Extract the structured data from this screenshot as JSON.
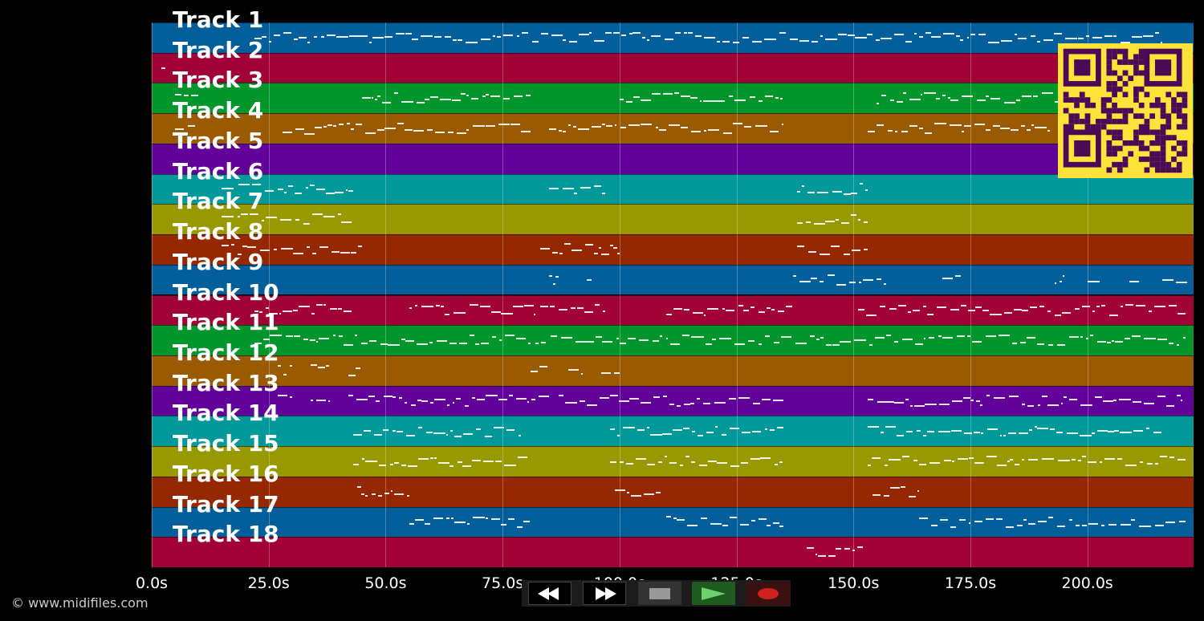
{
  "tracks": [
    {
      "label": "Track 1",
      "color": "#005f9a"
    },
    {
      "label": "Track 2",
      "color": "#a00035"
    },
    {
      "label": "Track 3",
      "color": "#00962c"
    },
    {
      "label": "Track 4",
      "color": "#9a5a00"
    },
    {
      "label": "Track 5",
      "color": "#62009a"
    },
    {
      "label": "Track 6",
      "color": "#009898"
    },
    {
      "label": "Track 7",
      "color": "#989800"
    },
    {
      "label": "Track 8",
      "color": "#962800"
    },
    {
      "label": "Track 9",
      "color": "#005f9a"
    },
    {
      "label": "Track 10",
      "color": "#a00035"
    },
    {
      "label": "Track 11",
      "color": "#00962c"
    },
    {
      "label": "Track 12",
      "color": "#9a5a00"
    },
    {
      "label": "Track 13",
      "color": "#62009a"
    },
    {
      "label": "Track 14",
      "color": "#009898"
    },
    {
      "label": "Track 15",
      "color": "#989800"
    },
    {
      "label": "Track 16",
      "color": "#962800"
    },
    {
      "label": "Track 17",
      "color": "#005f9a"
    },
    {
      "label": "Track 18",
      "color": "#a00035"
    }
  ],
  "timeline": {
    "ticks": [
      "0.0s",
      "25.0s",
      "50.0s",
      "75.0s",
      "100.0s",
      "125.0s",
      "150.0s",
      "175.0s",
      "200.0s"
    ],
    "tick_seconds": [
      0,
      25,
      50,
      75,
      100,
      125,
      150,
      175,
      200
    ],
    "max_seconds": 222.7
  },
  "note_segments": [
    {
      "track": 0,
      "spans": [
        [
          22,
          216
        ]
      ]
    },
    {
      "track": 1,
      "spans": [
        [
          2,
          3
        ]
      ]
    },
    {
      "track": 2,
      "spans": [
        [
          5,
          10
        ],
        [
          45,
          81
        ],
        [
          100,
          135
        ],
        [
          155,
          195
        ]
      ]
    },
    {
      "track": 3,
      "spans": [
        [
          5,
          10
        ],
        [
          28,
          81
        ],
        [
          85,
          135
        ],
        [
          153,
          192
        ]
      ]
    },
    {
      "track": 5,
      "spans": [
        [
          15,
          43
        ],
        [
          85,
          97
        ],
        [
          138,
          153
        ]
      ]
    },
    {
      "track": 6,
      "spans": [
        [
          15,
          43
        ],
        [
          138,
          153
        ]
      ]
    },
    {
      "track": 7,
      "spans": [
        [
          15,
          45
        ],
        [
          83,
          100
        ],
        [
          138,
          153
        ]
      ]
    },
    {
      "track": 8,
      "spans": [
        [
          85,
          87
        ],
        [
          93,
          94
        ],
        [
          137,
          157
        ],
        [
          169,
          173
        ],
        [
          193,
          195
        ],
        [
          200,
          203
        ],
        [
          209,
          211
        ],
        [
          216,
          222
        ]
      ]
    },
    {
      "track": 9,
      "spans": [
        [
          22,
          43
        ],
        [
          55,
          82
        ],
        [
          83,
          97
        ],
        [
          110,
          137
        ],
        [
          151,
          221
        ]
      ]
    },
    {
      "track": 10,
      "spans": [
        [
          22,
          81
        ],
        [
          82,
          221
        ]
      ]
    },
    {
      "track": 11,
      "spans": [
        [
          27,
          30
        ],
        [
          34,
          38
        ],
        [
          42,
          45
        ],
        [
          81,
          85
        ],
        [
          89,
          92
        ],
        [
          96,
          100
        ]
      ]
    },
    {
      "track": 12,
      "spans": [
        [
          27,
          30
        ],
        [
          34,
          38
        ],
        [
          42,
          85
        ],
        [
          87,
          135
        ],
        [
          153,
          220
        ]
      ]
    },
    {
      "track": 13,
      "spans": [
        [
          43,
          79
        ],
        [
          98,
          135
        ],
        [
          153,
          216
        ]
      ]
    },
    {
      "track": 14,
      "spans": [
        [
          43,
          81
        ],
        [
          98,
          135
        ],
        [
          153,
          221
        ]
      ]
    },
    {
      "track": 15,
      "spans": [
        [
          44,
          55
        ],
        [
          99,
          109
        ],
        [
          154,
          164
        ]
      ]
    },
    {
      "track": 16,
      "spans": [
        [
          55,
          81
        ],
        [
          110,
          135
        ],
        [
          164,
          221
        ]
      ]
    },
    {
      "track": 17,
      "spans": [
        [
          140,
          152
        ]
      ]
    }
  ],
  "controls": {
    "rewind_icon": "rewind-icon",
    "fast_forward_icon": "fast-forward-icon",
    "stop_icon": "stop-icon",
    "play_icon": "play-icon",
    "record_icon": "record-icon"
  },
  "footer": {
    "copyright": "© www.midifiles.com"
  },
  "qr_code": {
    "icon": "qr-code-icon"
  }
}
